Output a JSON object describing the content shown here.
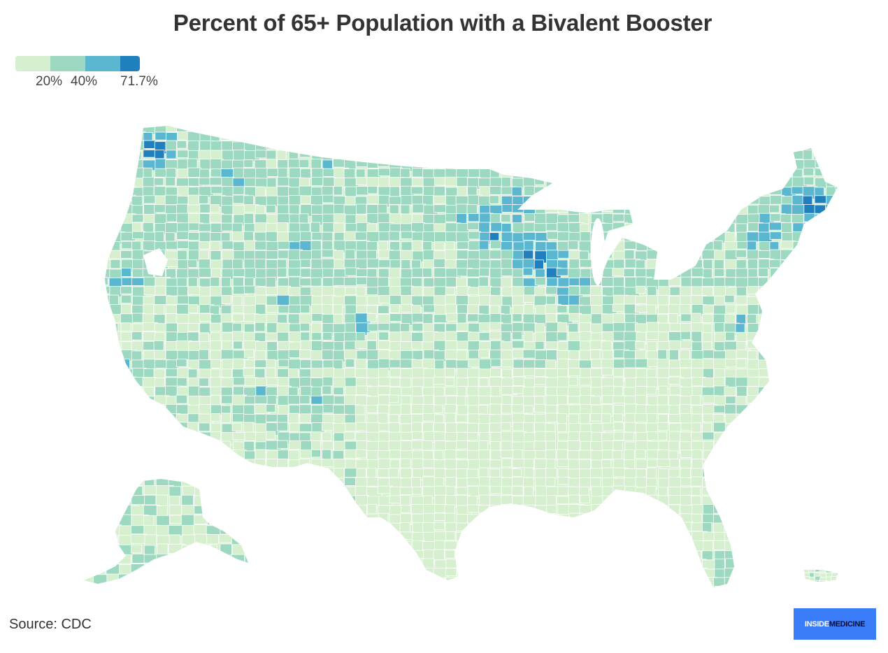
{
  "title": "Percent of 65+ Population with a Bivalent Booster",
  "legend": {
    "colors": [
      "#d6efcf",
      "#9dd9c0",
      "#5bb7d0",
      "#2080bd"
    ],
    "labels": [
      "20%",
      "40%",
      "71.7%"
    ]
  },
  "source": "Source: CDC",
  "logo": {
    "part1": "INSIDE",
    "part2": "MEDICINE"
  },
  "map": {
    "type": "choropleth",
    "region": "United States counties",
    "scale_min_label": "20%",
    "scale_max_label": "71.7%",
    "border_color": "#ffffff"
  }
}
